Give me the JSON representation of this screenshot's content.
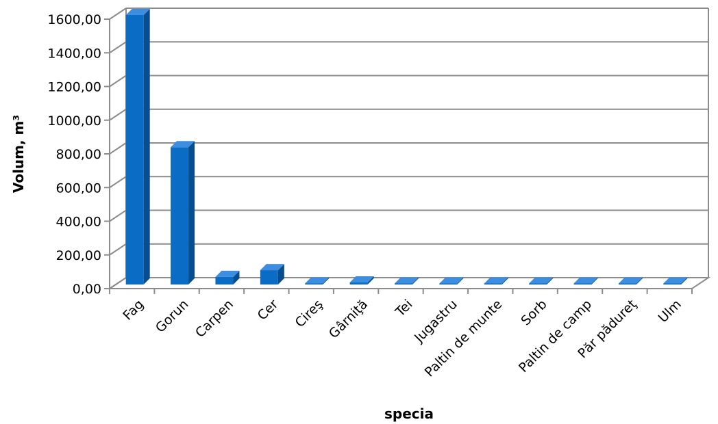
{
  "chart_data": {
    "type": "bar",
    "style": "3d-column",
    "title": "",
    "xlabel": "specia",
    "ylabel": "Volum, m³",
    "ylim": [
      0,
      1600
    ],
    "ytick_step": 200,
    "ytick_labels": [
      "0,00",
      "200,00",
      "400,00",
      "600,00",
      "800,00",
      "1000,00",
      "1200,00",
      "1400,00",
      "1600,00"
    ],
    "grid": true,
    "legend": "none",
    "categories": [
      "Fag",
      "Gorun",
      "Carpen",
      "Cer",
      "Cireş",
      "Gârniţă",
      "Tei",
      "Jugastru",
      "Paltin de munte",
      "Sorb",
      "Paltin de camp",
      "Păr pădureţ",
      "Ulm"
    ],
    "values": [
      1600,
      815,
      45,
      85,
      5,
      12,
      3,
      6,
      3,
      2,
      2,
      3,
      2
    ],
    "colors": {
      "bar_front": "#0a6cc4",
      "bar_side": "#0a4d8f",
      "bar_top": "#3d8de0",
      "grid": "#8c8c8c",
      "wall": "#ffffff"
    }
  }
}
